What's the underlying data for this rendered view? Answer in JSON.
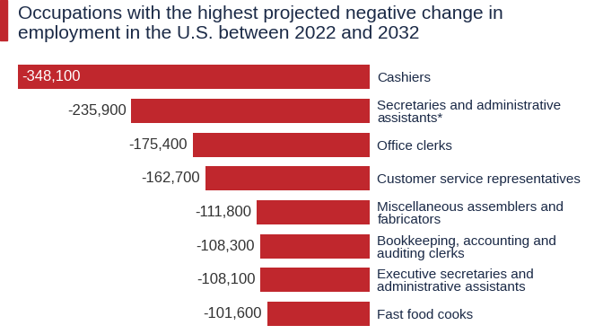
{
  "chart_data": {
    "type": "bar",
    "title": "Occupations with the highest projected negative change in employment in the U.S. between 2022 and 2032",
    "orientation": "horizontal",
    "categories": [
      "Cashiers",
      "Secretaries and administrative assistants*",
      "Office clerks",
      "Customer service representatives",
      "Miscellaneous assemblers and fabricators",
      "Bookkeeping, accounting and auditing clerks",
      "Executive secretaries and administrative assistants",
      "Fast food cooks"
    ],
    "values": [
      -348100,
      -235900,
      -175400,
      -162700,
      -111800,
      -108300,
      -108100,
      -101600
    ],
    "value_labels": [
      "-348,100",
      "-235,900",
      "-175,400",
      "-162,700",
      "-111,800",
      "-108,300",
      "-108,100",
      "-101,600"
    ],
    "color": "#c0272d",
    "xlim": [
      -348100,
      0
    ],
    "data_labels": true,
    "tick_labels": "y",
    "grid": false
  }
}
